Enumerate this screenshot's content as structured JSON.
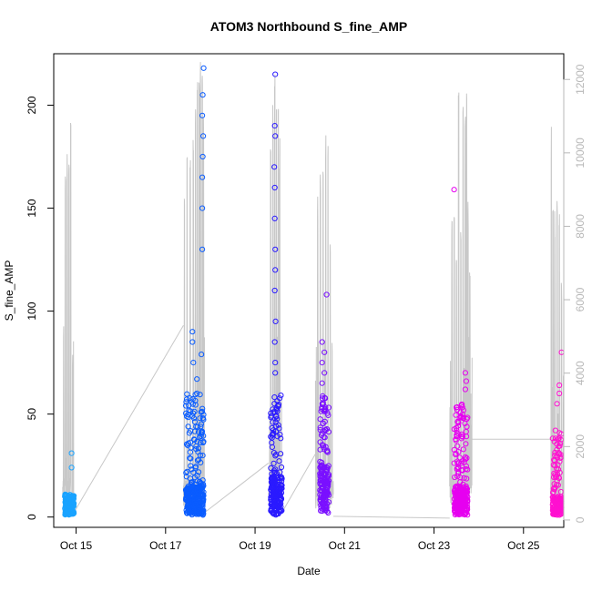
{
  "chart_data": {
    "type": "scatter",
    "title": "ATOM3 Northbound S_fine_AMP",
    "xlabel": "Date",
    "ylabel": "S_fine_AMP",
    "x_ticks": [
      "Oct 15",
      "Oct 17",
      "Oct 19",
      "Oct 21",
      "Oct 23",
      "Oct 25"
    ],
    "x_tick_days": [
      15,
      17,
      19,
      21,
      23,
      25
    ],
    "xlim_days": [
      14.5,
      25.9
    ],
    "y_ticks": [
      0,
      50,
      100,
      150,
      200
    ],
    "ylim": [
      -5,
      225
    ],
    "y2_ticks": [
      0,
      2000,
      4000,
      6000,
      8000,
      10000,
      12000
    ],
    "y2lim": [
      -200,
      12700
    ],
    "grid": false,
    "legend": "none",
    "colors": {
      "points_gradient": [
        "#00aaff",
        "#0055ff",
        "#2b00ff",
        "#8000ff",
        "#ee00ee",
        "#ff00cc"
      ],
      "line": "#c8c8c8",
      "axis": "#000000",
      "secondary_axis": "#b8b8b8"
    },
    "series": [
      {
        "kind": "points",
        "clusters": [
          {
            "x_start": 14.75,
            "x_end": 14.95,
            "y_min": 1,
            "y_base": 8,
            "y_max": 11,
            "color": "#1aa3ff",
            "outliers": [
              [
                14.9,
                31
              ],
              [
                14.9,
                24
              ]
            ]
          },
          {
            "x_start": 17.45,
            "x_end": 17.85,
            "y_min": 1,
            "y_base": 15,
            "y_max": 60,
            "color": "#0a5cff",
            "outliers": [
              [
                17.85,
                218
              ],
              [
                17.83,
                205
              ],
              [
                17.82,
                195
              ],
              [
                17.84,
                185
              ],
              [
                17.83,
                175
              ],
              [
                17.82,
                165
              ],
              [
                17.82,
                150
              ],
              [
                17.82,
                130
              ],
              [
                17.6,
                90
              ],
              [
                17.6,
                85
              ],
              [
                17.62,
                75
              ],
              [
                17.8,
                79
              ],
              [
                17.7,
                67
              ],
              [
                17.7,
                60
              ]
            ]
          },
          {
            "x_start": 19.35,
            "x_end": 19.6,
            "y_min": 1,
            "y_base": 20,
            "y_max": 60,
            "color": "#2a1aff",
            "outliers": [
              [
                19.45,
                215
              ],
              [
                19.44,
                190
              ],
              [
                19.45,
                185
              ],
              [
                19.43,
                170
              ],
              [
                19.44,
                160
              ],
              [
                19.44,
                145
              ],
              [
                19.45,
                130
              ],
              [
                19.45,
                120
              ],
              [
                19.44,
                110
              ],
              [
                19.46,
                95
              ],
              [
                19.44,
                85
              ],
              [
                19.45,
                75
              ],
              [
                19.45,
                70
              ]
            ]
          },
          {
            "x_start": 20.45,
            "x_end": 20.65,
            "y_min": 2,
            "y_base": 25,
            "y_max": 60,
            "color": "#7a10ff",
            "outliers": [
              [
                20.6,
                108
              ],
              [
                20.5,
                85
              ],
              [
                20.55,
                80
              ],
              [
                20.5,
                75
              ],
              [
                20.55,
                70
              ],
              [
                20.5,
                65
              ]
            ]
          },
          {
            "x_start": 23.45,
            "x_end": 23.75,
            "y_min": 1,
            "y_base": 15,
            "y_max": 55,
            "color": "#e600f0",
            "outliers": [
              [
                23.45,
                159
              ],
              [
                23.7,
                70
              ],
              [
                23.72,
                66
              ],
              [
                23.7,
                62
              ]
            ]
          },
          {
            "x_start": 25.65,
            "x_end": 25.85,
            "y_min": 1,
            "y_base": 10,
            "y_max": 45,
            "color": "#ff10d0",
            "outliers": [
              [
                25.85,
                80
              ],
              [
                25.8,
                64
              ],
              [
                25.8,
                60
              ],
              [
                25.75,
                55
              ]
            ]
          }
        ]
      },
      {
        "kind": "line",
        "axis": "right",
        "bursts": [
          {
            "x_start": 14.7,
            "x_end": 14.95,
            "peaks": [
              [
                14.72,
                5500
              ],
              [
                14.76,
                9800
              ],
              [
                14.8,
                10050
              ],
              [
                14.84,
                10200
              ],
              [
                14.88,
                11600
              ],
              [
                14.92,
                4500
              ]
            ]
          },
          {
            "x_start": 17.4,
            "x_end": 17.87,
            "peaks": [
              [
                17.42,
                9500
              ],
              [
                17.48,
                9900
              ],
              [
                17.55,
                10500
              ],
              [
                17.62,
                10800
              ],
              [
                17.67,
                11200
              ],
              [
                17.71,
                12000
              ],
              [
                17.75,
                12200
              ],
              [
                17.78,
                12600
              ],
              [
                17.82,
                12300
              ],
              [
                17.85,
                11500
              ]
            ]
          },
          {
            "x_start": 19.3,
            "x_end": 19.6,
            "peaks": [
              [
                19.35,
                10600
              ],
              [
                19.4,
                11700
              ],
              [
                19.44,
                12400
              ],
              [
                19.48,
                12100
              ],
              [
                19.52,
                11800
              ],
              [
                19.55,
                10500
              ]
            ]
          },
          {
            "x_start": 20.35,
            "x_end": 20.75,
            "peaks": [
              [
                20.4,
                8900
              ],
              [
                20.46,
                9700
              ],
              [
                20.52,
                10300
              ],
              [
                20.58,
                10500
              ],
              [
                20.63,
                10800
              ],
              [
                20.68,
                8000
              ],
              [
                20.72,
                5000
              ]
            ]
          },
          {
            "x_start": 23.35,
            "x_end": 23.85,
            "peaks": [
              [
                23.4,
                8500
              ],
              [
                23.45,
                8300
              ],
              [
                23.5,
                7600
              ],
              [
                23.55,
                12400
              ],
              [
                23.6,
                8000
              ],
              [
                23.65,
                11300
              ],
              [
                23.7,
                11500
              ],
              [
                23.73,
                12200
              ],
              [
                23.76,
                8700
              ],
              [
                23.8,
                7000
              ]
            ]
          },
          {
            "x_start": 25.6,
            "x_end": 25.9,
            "peaks": [
              [
                25.62,
                10800
              ],
              [
                25.66,
                9000
              ],
              [
                25.7,
                8500
              ],
              [
                25.75,
                8800
              ],
              [
                25.8,
                8700
              ],
              [
                25.85,
                6500
              ]
            ]
          }
        ],
        "connectors": [
          [
            [
              14.95,
              200
            ],
            [
              17.4,
              5300
            ]
          ],
          [
            [
              17.87,
              200
            ],
            [
              19.3,
              1550
            ]
          ],
          [
            [
              19.6,
              200
            ],
            [
              20.35,
              1800
            ]
          ],
          [
            [
              20.75,
              100
            ],
            [
              23.35,
              50
            ]
          ],
          [
            [
              23.85,
              2200
            ],
            [
              25.6,
              2200
            ]
          ]
        ]
      }
    ]
  }
}
